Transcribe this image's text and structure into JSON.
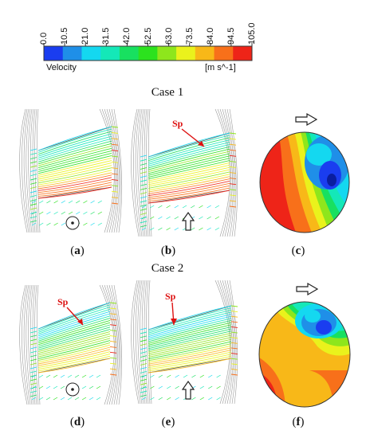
{
  "colorbar": {
    "ticks": [
      "0.0",
      "10.5",
      "21.0",
      "31.5",
      "42.0",
      "52.5",
      "63.0",
      "73.5",
      "84.0",
      "94.5",
      "105.0"
    ],
    "colors": [
      "#1a3df0",
      "#1f8fe8",
      "#14d8f0",
      "#14e8b8",
      "#18e060",
      "#2ce21e",
      "#8ee61c",
      "#eaf21c",
      "#f8b818",
      "#f8701a",
      "#ee2418"
    ],
    "quantity_label": "Velocity",
    "unit_label": "[m s^-1]"
  },
  "cases": [
    {
      "title": "Case 1",
      "panels": [
        {
          "label": "a"
        },
        {
          "label": "b"
        },
        {
          "label": "c"
        }
      ]
    },
    {
      "title": "Case 2",
      "panels": [
        {
          "label": "d"
        },
        {
          "label": "e"
        },
        {
          "label": "f"
        }
      ]
    }
  ],
  "annotations": {
    "separation_point": "Sp"
  },
  "icons": [
    "arrow-up-outline-icon",
    "arrow-right-outline-icon",
    "out-of-plane-dot-icon"
  ]
}
